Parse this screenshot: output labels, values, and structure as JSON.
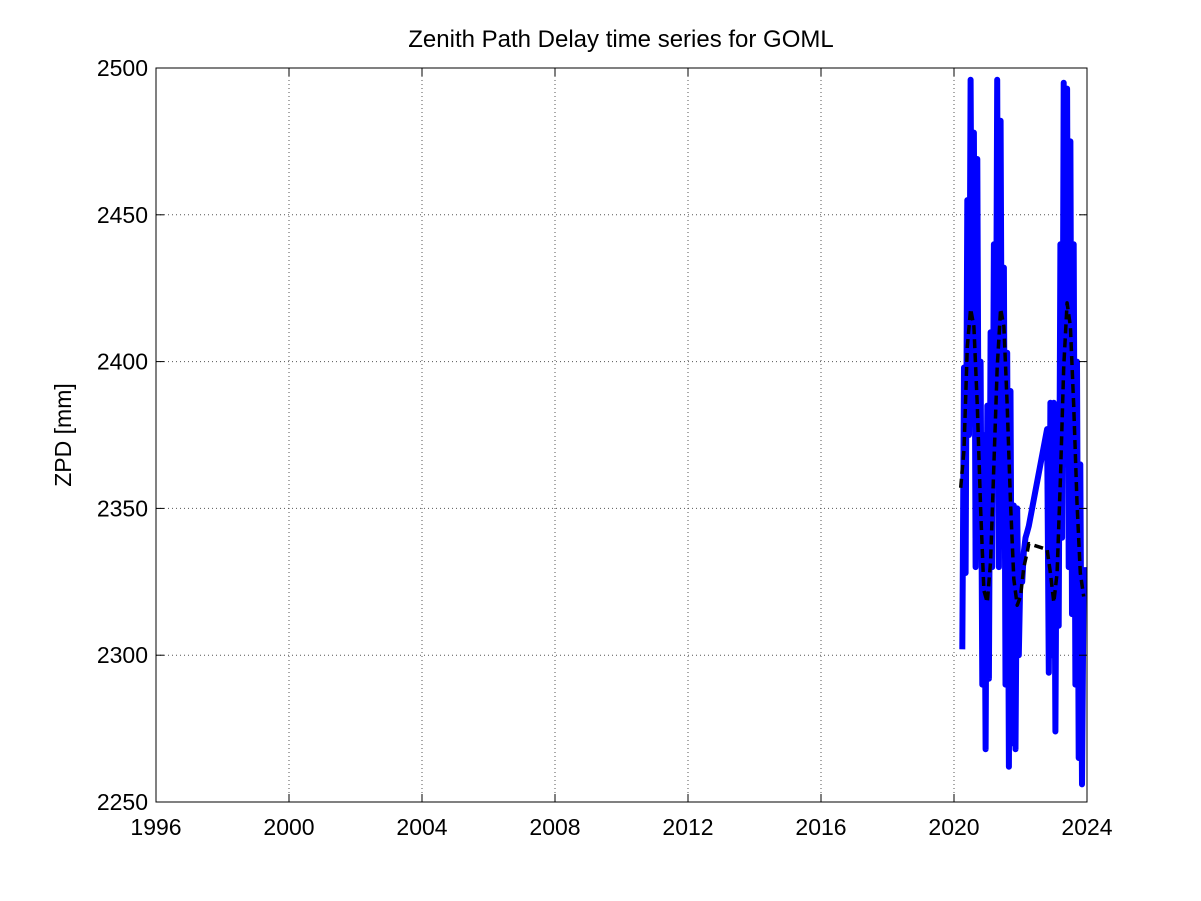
{
  "chart_data": {
    "type": "line",
    "title": "Zenith Path Delay time series for GOML",
    "xlabel": "",
    "ylabel": "ZPD [mm]",
    "xlim": [
      1996,
      2024
    ],
    "ylim": [
      2250,
      2500
    ],
    "xticks": [
      1996,
      2000,
      2004,
      2008,
      2012,
      2016,
      2020,
      2024
    ],
    "yticks": [
      2250,
      2300,
      2350,
      2400,
      2450,
      2500
    ],
    "grid": true,
    "legend": "none",
    "series": [
      {
        "style": "solid",
        "color": "#0000ff",
        "x": [
          2020.25,
          2020.3,
          2020.35,
          2020.4,
          2020.45,
          2020.5,
          2020.55,
          2020.6,
          2020.65,
          2020.7,
          2020.75,
          2020.8,
          2020.85,
          2020.9,
          2020.95,
          2021.0,
          2021.05,
          2021.1,
          2021.15,
          2021.2,
          2021.25,
          2021.3,
          2021.35,
          2021.4,
          2021.45,
          2021.5,
          2021.55,
          2021.6,
          2021.65,
          2021.7,
          2021.75,
          2021.8,
          2021.85,
          2021.9,
          2021.95,
          2022.0,
          2022.05,
          2022.1,
          2022.15,
          2022.2,
          2022.25,
          2022.8,
          2022.85,
          2022.9,
          2022.95,
          2023.0,
          2023.05,
          2023.1,
          2023.15,
          2023.2,
          2023.25,
          2023.3,
          2023.35,
          2023.4,
          2023.45,
          2023.5,
          2023.55,
          2023.6,
          2023.65,
          2023.7,
          2023.75,
          2023.8,
          2023.85,
          2023.9
        ],
        "y": [
          2302,
          2398,
          2328,
          2455,
          2375,
          2496,
          2385,
          2478,
          2330,
          2469,
          2340,
          2400,
          2290,
          2375,
          2268,
          2385,
          2292,
          2410,
          2330,
          2440,
          2360,
          2496,
          2330,
          2482,
          2350,
          2432,
          2290,
          2403,
          2262,
          2390,
          2270,
          2351,
          2268,
          2350,
          2300,
          2330,
          2325,
          2335,
          2340,
          2342,
          2344,
          2377,
          2294,
          2386,
          2300,
          2386,
          2274,
          2380,
          2310,
          2440,
          2340,
          2495,
          2365,
          2493,
          2330,
          2475,
          2314,
          2440,
          2290,
          2400,
          2265,
          2365,
          2256,
          2330
        ]
      },
      {
        "style": "dashed",
        "color": "#000000",
        "x": [
          2020.2,
          2020.3,
          2020.4,
          2020.5,
          2020.6,
          2020.7,
          2020.8,
          2020.9,
          2021.0,
          2021.1,
          2021.2,
          2021.3,
          2021.4,
          2021.5,
          2021.6,
          2021.7,
          2021.8,
          2021.9,
          2022.0,
          2022.1,
          2022.2,
          2022.25,
          2022.8,
          2022.9,
          2023.0,
          2023.1,
          2023.2,
          2023.3,
          2023.4,
          2023.5,
          2023.6,
          2023.7,
          2023.8,
          2023.9
        ],
        "y": [
          2357,
          2370,
          2405,
          2418,
          2412,
          2385,
          2350,
          2322,
          2318,
          2332,
          2365,
          2398,
          2418,
          2412,
          2385,
          2352,
          2326,
          2317,
          2320,
          2330,
          2335,
          2338,
          2336,
          2328,
          2318,
          2328,
          2360,
          2398,
          2420,
          2412,
          2385,
          2352,
          2328,
          2320
        ]
      }
    ]
  }
}
